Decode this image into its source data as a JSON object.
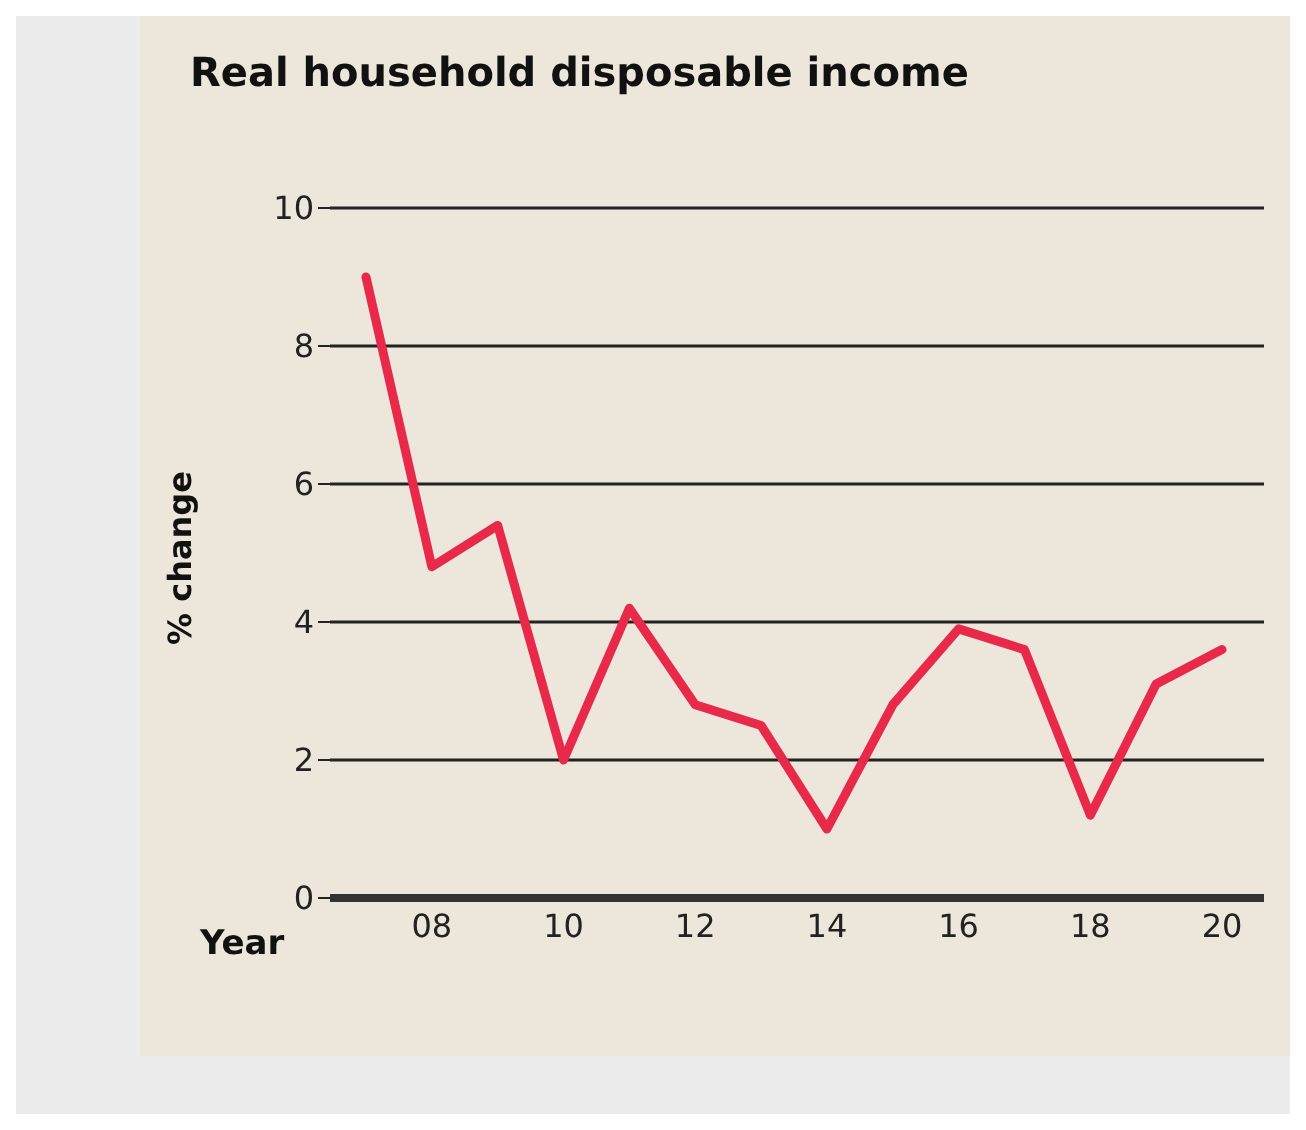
{
  "chart_data": {
    "type": "line",
    "title": "Real household disposable income",
    "xlabel": "Year",
    "ylabel": "% change",
    "categories": [
      null,
      "08",
      null,
      "10",
      null,
      "12",
      null,
      "14",
      null,
      "16",
      null,
      "18",
      null,
      "20"
    ],
    "series": [
      {
        "color": "#e8294a",
        "values": [
          9.0,
          4.8,
          5.4,
          2.0,
          4.2,
          2.8,
          2.5,
          1.0,
          2.8,
          3.9,
          3.6,
          1.2,
          3.1,
          3.6
        ]
      }
    ],
    "ylim": [
      0,
      10
    ],
    "yticks": [
      0,
      2,
      4,
      6,
      8,
      10
    ],
    "grid": "y",
    "marker": "none",
    "line_style": "solid"
  }
}
